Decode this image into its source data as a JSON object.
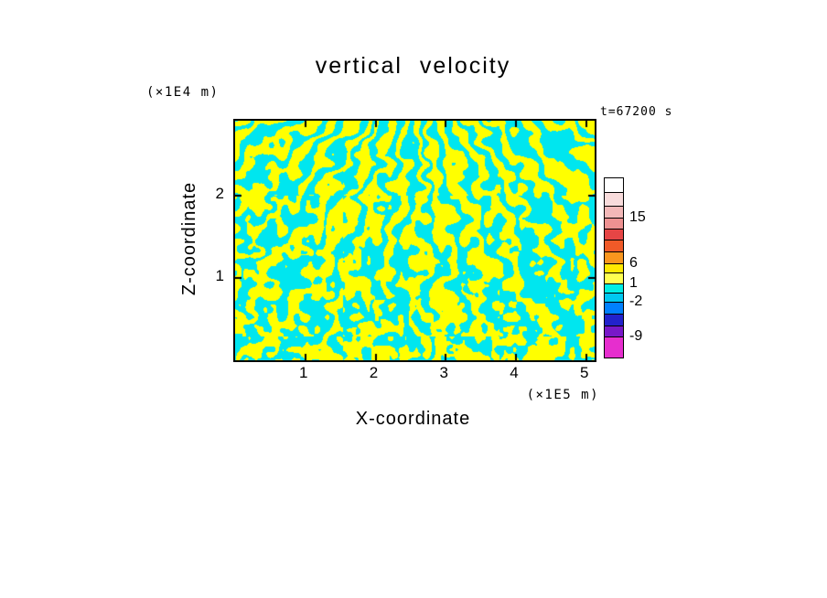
{
  "page": {
    "background": "#FFFFFF"
  },
  "chart_data": {
    "type": "heatmap",
    "title": "vertical velocity",
    "timestamp": "t=67200 s",
    "xlabel": "X-coordinate",
    "ylabel": "Z-coordinate",
    "x_unit": "(×1E5 m)",
    "y_unit": "(×1E4 m)",
    "xlim": [
      0,
      5.12
    ],
    "ylim": [
      0,
      2.91
    ],
    "x_tick_values": [
      1,
      2,
      3,
      4,
      5
    ],
    "x_tick_labels": [
      "1",
      "2",
      "3",
      "4",
      "5"
    ],
    "y_tick_values": [
      1,
      2
    ],
    "y_tick_labels": [
      "1",
      "2"
    ],
    "grid": false,
    "legend_position": "right-colorbar",
    "field_colors": {
      "negative": "#00E6EF",
      "positive": "#FFFF00"
    },
    "colorbar": {
      "levels_labeled": [
        15,
        6,
        1,
        -2,
        -9
      ],
      "segments": [
        {
          "color": "#FFFFFF",
          "h": 16
        },
        {
          "color": "#F8DBDB",
          "h": 15
        },
        {
          "color": "#F3B8B8",
          "h": 13
        },
        {
          "color": "#EE9191",
          "h": 12
        },
        {
          "color": "#E64545",
          "h": 12
        },
        {
          "color": "#F05A28",
          "h": 13
        },
        {
          "color": "#F9961E",
          "h": 13
        },
        {
          "color": "#FFE800",
          "h": 10
        },
        {
          "color": "#FFFF50",
          "h": 12
        },
        {
          "color": "#00EEE4",
          "h": 10
        },
        {
          "color": "#00C8F0",
          "h": 10
        },
        {
          "color": "#0080FF",
          "h": 13
        },
        {
          "color": "#2222CC",
          "h": 13
        },
        {
          "color": "#7818C8",
          "h": 12
        },
        {
          "color": "#E62ECE",
          "h": 22
        }
      ],
      "labels": [
        {
          "text": "15",
          "offset": 44
        },
        {
          "text": "6",
          "offset": 94
        },
        {
          "text": "1",
          "offset": 116
        },
        {
          "text": "-2",
          "offset": 136
        },
        {
          "text": "-9",
          "offset": 174
        }
      ]
    },
    "pattern": {
      "seed": 7,
      "ray_count": 46,
      "focus": [
        0.47,
        -0.35
      ],
      "blob_amp": 1.25,
      "stripe_noise": 7
    }
  }
}
